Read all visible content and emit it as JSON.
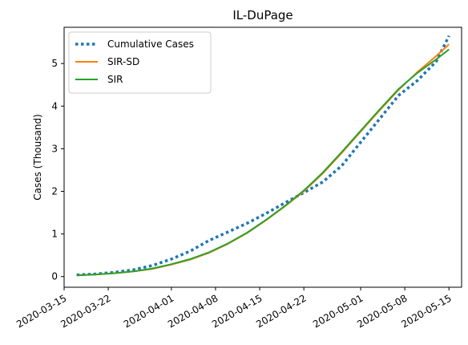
{
  "chart_data": {
    "type": "line",
    "title": "IL-DuPage",
    "xlabel": "",
    "ylabel": "Cases (Thousand)",
    "xlim": [
      "2020-03-15",
      "2020-05-17"
    ],
    "ylim": [
      -0.25,
      5.85
    ],
    "x_ticks": [
      "2020-03-15",
      "2020-03-22",
      "2020-04-01",
      "2020-04-08",
      "2020-04-15",
      "2020-04-22",
      "2020-05-01",
      "2020-05-08",
      "2020-05-15"
    ],
    "y_ticks": [
      0,
      1,
      2,
      3,
      4,
      5
    ],
    "legend_position": "upper-left",
    "grid": false,
    "series": [
      {
        "name": "Cumulative Cases",
        "style": "dotted",
        "color": "#1f77b4",
        "x": [
          "2020-03-17",
          "2020-03-20",
          "2020-03-23",
          "2020-03-26",
          "2020-03-29",
          "2020-04-01",
          "2020-04-04",
          "2020-04-07",
          "2020-04-10",
          "2020-04-13",
          "2020-04-16",
          "2020-04-19",
          "2020-04-22",
          "2020-04-25",
          "2020-04-28",
          "2020-05-01",
          "2020-05-04",
          "2020-05-07",
          "2020-05-10",
          "2020-05-13",
          "2020-05-15"
        ],
        "values": [
          0.04,
          0.06,
          0.1,
          0.16,
          0.26,
          0.41,
          0.6,
          0.85,
          1.05,
          1.25,
          1.48,
          1.73,
          1.97,
          2.22,
          2.6,
          3.15,
          3.7,
          4.25,
          4.6,
          5.05,
          5.65
        ]
      },
      {
        "name": "SIR-SD",
        "style": "solid",
        "color": "#ff7f0e",
        "x": [
          "2020-03-17",
          "2020-03-20",
          "2020-03-23",
          "2020-03-26",
          "2020-03-29",
          "2020-04-01",
          "2020-04-04",
          "2020-04-07",
          "2020-04-10",
          "2020-04-13",
          "2020-04-16",
          "2020-04-19",
          "2020-04-22",
          "2020-04-25",
          "2020-04-28",
          "2020-05-01",
          "2020-05-04",
          "2020-05-07",
          "2020-05-10",
          "2020-05-13",
          "2020-05-15"
        ],
        "values": [
          0.03,
          0.05,
          0.08,
          0.12,
          0.18,
          0.28,
          0.4,
          0.56,
          0.77,
          1.02,
          1.32,
          1.65,
          2.0,
          2.42,
          2.9,
          3.4,
          3.9,
          4.38,
          4.8,
          5.18,
          5.45
        ]
      },
      {
        "name": "SIR",
        "style": "solid",
        "color": "#2ca02c",
        "x": [
          "2020-03-17",
          "2020-03-20",
          "2020-03-23",
          "2020-03-26",
          "2020-03-29",
          "2020-04-01",
          "2020-04-04",
          "2020-04-07",
          "2020-04-10",
          "2020-04-13",
          "2020-04-16",
          "2020-04-19",
          "2020-04-22",
          "2020-04-25",
          "2020-04-28",
          "2020-05-01",
          "2020-05-04",
          "2020-05-07",
          "2020-05-10",
          "2020-05-13",
          "2020-05-15"
        ],
        "values": [
          0.03,
          0.05,
          0.08,
          0.12,
          0.19,
          0.29,
          0.41,
          0.57,
          0.78,
          1.03,
          1.33,
          1.66,
          2.02,
          2.44,
          2.92,
          3.42,
          3.92,
          4.4,
          4.78,
          5.1,
          5.33
        ]
      }
    ]
  }
}
